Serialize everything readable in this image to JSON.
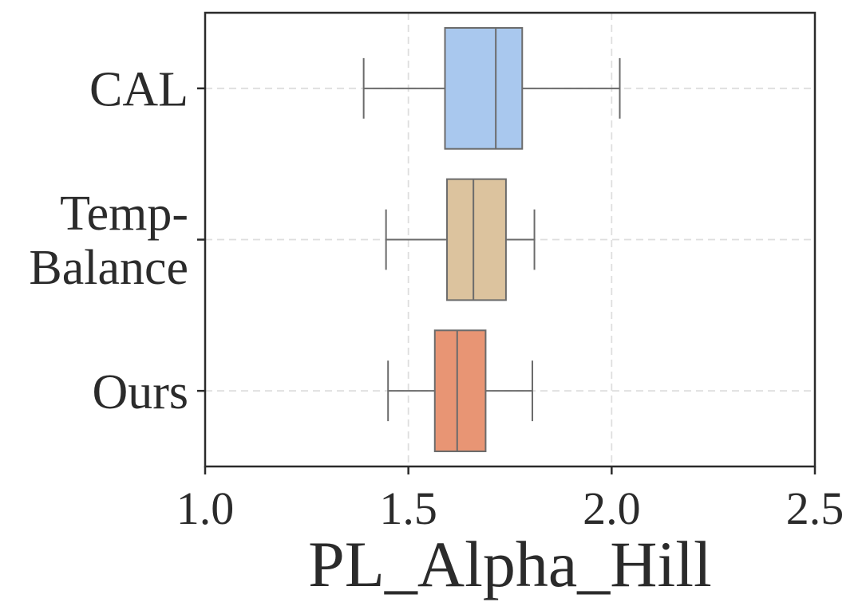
{
  "chart_data": {
    "type": "boxplot",
    "orientation": "horizontal",
    "xlabel": "PL_Alpha_Hill",
    "ylabel": "",
    "xlim": [
      1.0,
      2.5
    ],
    "xticks": [
      "1.0",
      "1.5",
      "2.0",
      "2.5"
    ],
    "xtick_values": [
      1.0,
      1.5,
      2.0,
      2.5
    ],
    "grid": true,
    "categories": [
      {
        "label_lines": [
          "CAL"
        ],
        "color": "#a9c8ee",
        "whisker_low": 1.39,
        "q1": 1.59,
        "median": 1.715,
        "q3": 1.78,
        "whisker_high": 2.02
      },
      {
        "label_lines": [
          "Temp-",
          "Balance"
        ],
        "color": "#dcc39e",
        "whisker_low": 1.445,
        "q1": 1.595,
        "median": 1.66,
        "q3": 1.74,
        "whisker_high": 1.81
      },
      {
        "label_lines": [
          "Ours"
        ],
        "color": "#e89574",
        "whisker_low": 1.45,
        "q1": 1.565,
        "median": 1.62,
        "q3": 1.69,
        "whisker_high": 1.805
      }
    ],
    "colors": {
      "axis": "#2b2b2b",
      "box_edge": "#6b6b6b",
      "grid": "#dedede"
    }
  }
}
